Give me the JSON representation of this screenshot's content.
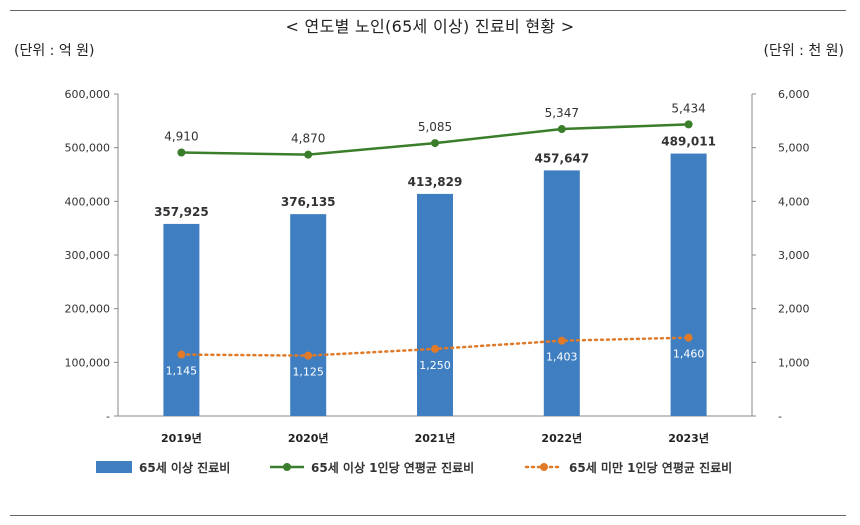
{
  "title": "< 연도별 노인(65세 이상) 진료비 현황 >",
  "unit_left": "(단위 : 억 원)",
  "unit_right": "(단위 : 천 원)",
  "colors": {
    "bar": "#3f7fc1",
    "green": "#3a7d2a",
    "orange": "#e07a28",
    "axis": "#888888"
  },
  "chart_data": {
    "type": "bar",
    "title": "< 연도별 노인(65세 이상) 진료비 현황 >",
    "categories": [
      "2019년",
      "2020년",
      "2021년",
      "2022년",
      "2023년"
    ],
    "series": [
      {
        "name": "65세 이상 진료비",
        "kind": "bar",
        "axis": "left",
        "values": [
          357925,
          376135,
          413829,
          457647,
          489011
        ],
        "labels": [
          "357,925",
          "376,135",
          "413,829",
          "457,647",
          "489,011"
        ]
      },
      {
        "name": "65세 이상 1인당 연평균 진료비",
        "kind": "line",
        "axis": "right",
        "values": [
          4910,
          4870,
          5085,
          5347,
          5434
        ],
        "labels": [
          "4,910",
          "4,870",
          "5,085",
          "5,347",
          "5,434"
        ]
      },
      {
        "name": "65세 미만 1인당 연평균 진료비",
        "kind": "dotted-line",
        "axis": "right",
        "values": [
          1145,
          1125,
          1250,
          1403,
          1460
        ],
        "labels": [
          "1,145",
          "1,125",
          "1,250",
          "1,403",
          "1,460"
        ]
      }
    ],
    "ylim_left": [
      0,
      600000
    ],
    "ylim_right": [
      0,
      6000
    ],
    "left_ticks": [
      "-",
      "100,000",
      "200,000",
      "300,000",
      "400,000",
      "500,000",
      "600,000"
    ],
    "right_ticks": [
      "-",
      "1,000",
      "2,000",
      "3,000",
      "4,000",
      "5,000",
      "6,000"
    ],
    "legend_position": "bottom"
  }
}
